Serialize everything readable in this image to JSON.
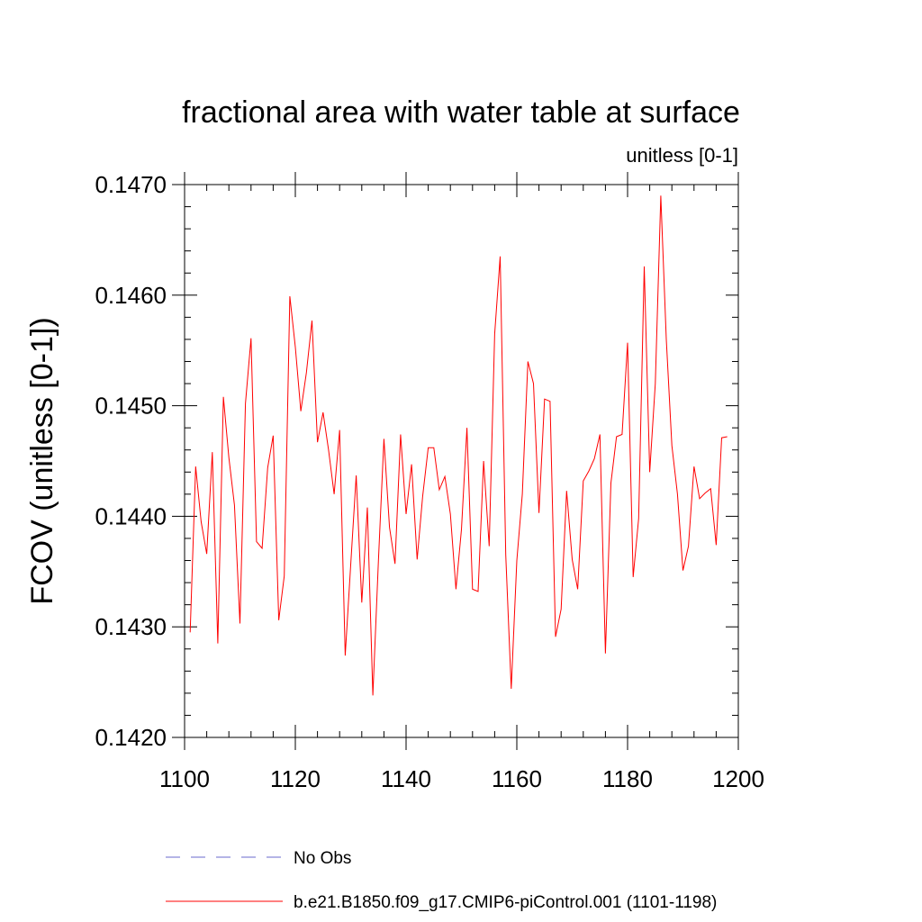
{
  "chart_data": {
    "type": "line",
    "title": "fractional area with water table at surface",
    "subtitle": "unitless [0-1]",
    "ylabel": "FCOV  (unitless [0-1])",
    "xlabel": "",
    "xlim": [
      1100,
      1200
    ],
    "ylim": [
      0.142,
      0.147
    ],
    "x_ticks": [
      1100,
      1120,
      1140,
      1160,
      1180,
      1200
    ],
    "x_tick_labels": [
      "1100",
      "1120",
      "1140",
      "1160",
      "1180",
      "1200"
    ],
    "y_ticks": [
      0.142,
      0.143,
      0.144,
      0.145,
      0.146,
      0.147
    ],
    "y_tick_labels": [
      "0.1420",
      "0.1430",
      "0.1440",
      "0.1450",
      "0.1460",
      "0.1470"
    ],
    "grid": false,
    "legend_position": "bottom",
    "legend": [
      {
        "label": "No Obs",
        "color": "#6a6acd",
        "style": "dashed"
      },
      {
        "label": "b.e21.B1850.f09_g17.CMIP6-piControl.001 (1101-1198)",
        "color": "#ff0000",
        "style": "solid"
      }
    ],
    "series": [
      {
        "name": "b.e21.B1850.f09_g17.CMIP6-piControl.001 (1101-1198)",
        "color": "#ff0000",
        "x_start": 1101,
        "x_step": 1,
        "values": [
          0.14295,
          0.14445,
          0.14395,
          0.14366,
          0.14458,
          0.14285,
          0.14508,
          0.14453,
          0.1441,
          0.14303,
          0.14502,
          0.14561,
          0.14377,
          0.14371,
          0.14444,
          0.14473,
          0.14306,
          0.14346,
          0.14599,
          0.14553,
          0.14495,
          0.1453,
          0.14577,
          0.14467,
          0.14494,
          0.1446,
          0.1442,
          0.14478,
          0.14274,
          0.14356,
          0.14437,
          0.14322,
          0.14408,
          0.14238,
          0.1436,
          0.1447,
          0.1439,
          0.14357,
          0.14474,
          0.14402,
          0.14447,
          0.14361,
          0.14418,
          0.14462,
          0.14462,
          0.14424,
          0.14436,
          0.14402,
          0.14334,
          0.14388,
          0.1448,
          0.14334,
          0.14332,
          0.1445,
          0.14373,
          0.14565,
          0.14635,
          0.14365,
          0.14244,
          0.1436,
          0.1442,
          0.1454,
          0.1452,
          0.14403,
          0.14506,
          0.14504,
          0.14291,
          0.14316,
          0.14423,
          0.14361,
          0.14334,
          0.14432,
          0.14441,
          0.14452,
          0.14474,
          0.14276,
          0.1443,
          0.14472,
          0.14474,
          0.14557,
          0.14345,
          0.14398,
          0.14626,
          0.1444,
          0.1452,
          0.1469,
          0.1456,
          0.14464,
          0.1442,
          0.14351,
          0.14373,
          0.14445,
          0.14416,
          0.14421,
          0.14425,
          0.14374,
          0.14471,
          0.14472
        ]
      }
    ]
  }
}
